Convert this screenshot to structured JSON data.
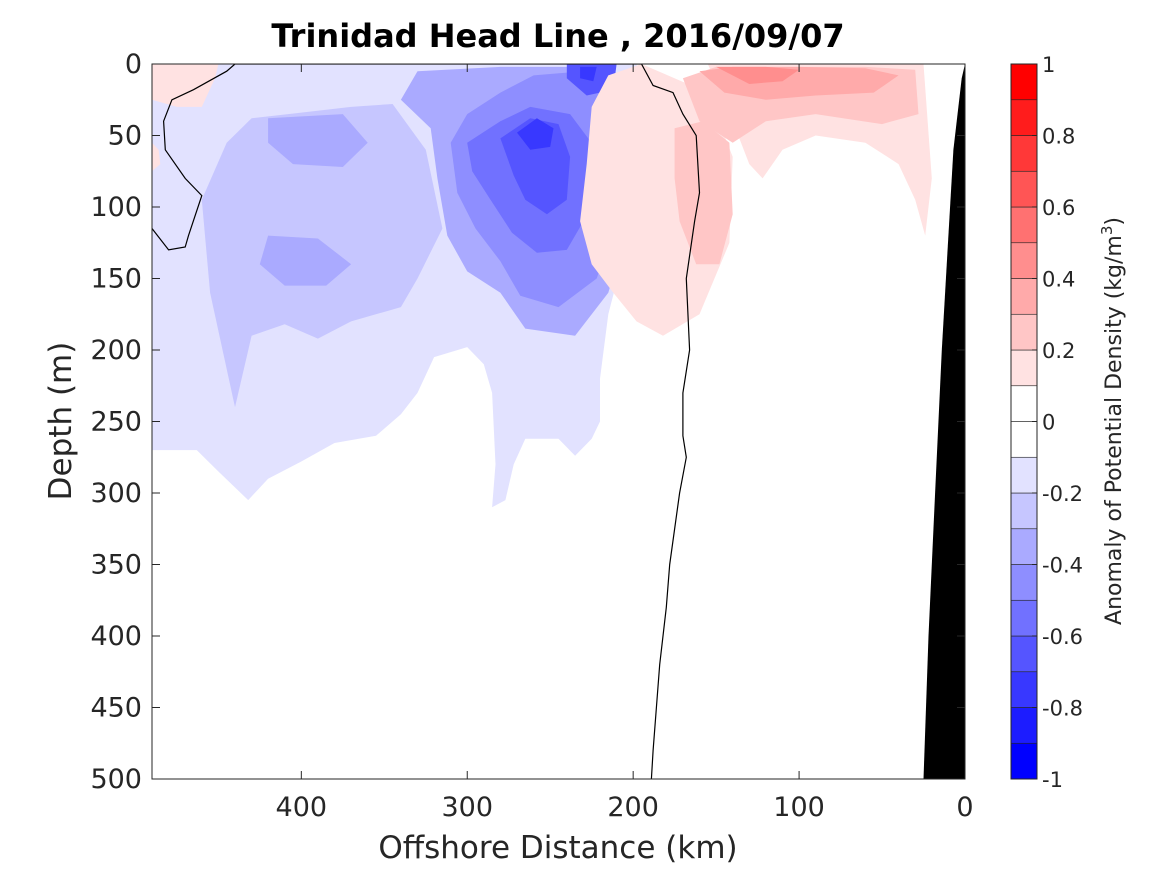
{
  "chart_data": {
    "type": "heatmap",
    "title": "Trinidad Head Line , 2016/09/07",
    "xlabel": "Offshore Distance (km)",
    "ylabel": "Depth (m)",
    "colorbar_label_prefix": "Anomaly of Potential Density (kg/m",
    "colorbar_label_sup": "3",
    "colorbar_label_suffix": ")",
    "x_reversed": true,
    "y_reversed": true,
    "xlim": [
      490,
      0
    ],
    "ylim": [
      0,
      500
    ],
    "xticks": [
      400,
      300,
      200,
      100,
      0
    ],
    "xtick_labels": [
      "400",
      "300",
      "200",
      "100",
      "0"
    ],
    "yticks": [
      0,
      50,
      100,
      150,
      200,
      250,
      300,
      350,
      400,
      450,
      500
    ],
    "ytick_labels": [
      "0",
      "50",
      "100",
      "150",
      "200",
      "250",
      "300",
      "350",
      "400",
      "450",
      "500"
    ],
    "colorbar": {
      "min": -1,
      "max": 1,
      "ticks": [
        -1,
        -0.8,
        -0.6,
        -0.4,
        -0.2,
        0,
        0.2,
        0.4,
        0.6,
        0.8,
        1
      ],
      "tick_labels": [
        "-1",
        "-0.8",
        "-0.6",
        "-0.4",
        "-0.2",
        "0",
        "0.2",
        "0.4",
        "0.6",
        "0.8",
        "1"
      ],
      "levels": [
        {
          "lo": -1.0,
          "hi": -0.9,
          "color": "#0000ff"
        },
        {
          "lo": -0.9,
          "hi": -0.8,
          "color": "#1c1cff"
        },
        {
          "lo": -0.8,
          "hi": -0.7,
          "color": "#3838ff"
        },
        {
          "lo": -0.7,
          "hi": -0.6,
          "color": "#5555ff"
        },
        {
          "lo": -0.6,
          "hi": -0.5,
          "color": "#7171ff"
        },
        {
          "lo": -0.5,
          "hi": -0.4,
          "color": "#8e8eff"
        },
        {
          "lo": -0.4,
          "hi": -0.3,
          "color": "#aaaaff"
        },
        {
          "lo": -0.3,
          "hi": -0.2,
          "color": "#c6c6ff"
        },
        {
          "lo": -0.2,
          "hi": -0.1,
          "color": "#e2e2ff"
        },
        {
          "lo": -0.1,
          "hi": 0.0,
          "color": "#ffffff"
        },
        {
          "lo": 0.0,
          "hi": 0.1,
          "color": "#ffffff"
        },
        {
          "lo": 0.1,
          "hi": 0.2,
          "color": "#ffe2e2"
        },
        {
          "lo": 0.2,
          "hi": 0.3,
          "color": "#ffc6c6"
        },
        {
          "lo": 0.3,
          "hi": 0.4,
          "color": "#ffaaaa"
        },
        {
          "lo": 0.4,
          "hi": 0.5,
          "color": "#ff8e8e"
        },
        {
          "lo": 0.5,
          "hi": 0.6,
          "color": "#ff7171"
        },
        {
          "lo": 0.6,
          "hi": 0.7,
          "color": "#ff5555"
        },
        {
          "lo": 0.7,
          "hi": 0.8,
          "color": "#ff3838"
        },
        {
          "lo": 0.8,
          "hi": 0.9,
          "color": "#ff1c1c"
        },
        {
          "lo": 0.9,
          "hi": 1.0,
          "color": "#ff0000"
        }
      ]
    },
    "anomaly_regions": [
      {
        "name": "offshore-weak-negative",
        "value": -0.15,
        "points": [
          [
            490,
            0
          ],
          [
            490,
            270
          ],
          [
            463,
            270
          ],
          [
            450,
            285
          ],
          [
            432,
            305
          ],
          [
            420,
            290
          ],
          [
            400,
            278
          ],
          [
            380,
            265
          ],
          [
            355,
            260
          ],
          [
            340,
            245
          ],
          [
            330,
            230
          ],
          [
            320,
            205
          ],
          [
            300,
            198
          ],
          [
            290,
            210
          ],
          [
            285,
            230
          ],
          [
            283,
            280
          ],
          [
            285,
            310
          ],
          [
            277,
            305
          ],
          [
            272,
            280
          ],
          [
            265,
            262
          ],
          [
            245,
            262
          ],
          [
            235,
            274
          ],
          [
            225,
            262
          ],
          [
            220,
            250
          ],
          [
            220,
            220
          ],
          [
            215,
            175
          ],
          [
            205,
            130
          ],
          [
            195,
            75
          ],
          [
            190,
            45
          ],
          [
            198,
            0
          ]
        ]
      },
      {
        "name": "offshore-moderate-negative-west",
        "value": -0.25,
        "points": [
          [
            440,
            240
          ],
          [
            455,
            160
          ],
          [
            460,
            95
          ],
          [
            445,
            55
          ],
          [
            430,
            38
          ],
          [
            400,
            34
          ],
          [
            370,
            30
          ],
          [
            345,
            28
          ],
          [
            325,
            60
          ],
          [
            315,
            115
          ],
          [
            330,
            150
          ],
          [
            340,
            170
          ],
          [
            370,
            180
          ],
          [
            390,
            192
          ],
          [
            410,
            182
          ],
          [
            430,
            190
          ],
          [
            440,
            240
          ]
        ]
      },
      {
        "name": "offshore-moderate-negative-core",
        "value": -0.35,
        "points": [
          [
            322,
            45
          ],
          [
            340,
            25
          ],
          [
            330,
            5
          ],
          [
            280,
            2
          ],
          [
            230,
            2
          ],
          [
            205,
            20
          ],
          [
            200,
            70
          ],
          [
            205,
            120
          ],
          [
            215,
            160
          ],
          [
            235,
            190
          ],
          [
            265,
            185
          ],
          [
            280,
            160
          ],
          [
            300,
            145
          ],
          [
            312,
            120
          ],
          [
            318,
            80
          ],
          [
            322,
            45
          ]
        ]
      },
      {
        "name": "offshore-negative-patch-a",
        "value": -0.35,
        "points": [
          [
            420,
            38
          ],
          [
            375,
            35
          ],
          [
            360,
            55
          ],
          [
            375,
            72
          ],
          [
            405,
            70
          ],
          [
            420,
            55
          ],
          [
            420,
            38
          ]
        ]
      },
      {
        "name": "offshore-negative-patch-b",
        "value": -0.35,
        "points": [
          [
            420,
            120
          ],
          [
            390,
            122
          ],
          [
            370,
            140
          ],
          [
            385,
            155
          ],
          [
            410,
            155
          ],
          [
            425,
            140
          ],
          [
            420,
            120
          ]
        ]
      },
      {
        "name": "negative-core-ring-1",
        "value": -0.45,
        "points": [
          [
            310,
            55
          ],
          [
            300,
            35
          ],
          [
            280,
            20
          ],
          [
            260,
            8
          ],
          [
            230,
            5
          ],
          [
            212,
            20
          ],
          [
            207,
            60
          ],
          [
            210,
            110
          ],
          [
            222,
            150
          ],
          [
            245,
            170
          ],
          [
            268,
            162
          ],
          [
            280,
            138
          ],
          [
            295,
            115
          ],
          [
            306,
            90
          ],
          [
            310,
            55
          ]
        ]
      },
      {
        "name": "negative-core-ring-2",
        "value": -0.55,
        "points": [
          [
            300,
            55
          ],
          [
            280,
            40
          ],
          [
            262,
            30
          ],
          [
            238,
            35
          ],
          [
            222,
            60
          ],
          [
            225,
            100
          ],
          [
            240,
            130
          ],
          [
            258,
            132
          ],
          [
            273,
            118
          ],
          [
            286,
            95
          ],
          [
            297,
            75
          ],
          [
            300,
            55
          ]
        ]
      },
      {
        "name": "negative-core-ring-3",
        "value": -0.65,
        "points": [
          [
            280,
            52
          ],
          [
            262,
            38
          ],
          [
            245,
            42
          ],
          [
            238,
            65
          ],
          [
            240,
            95
          ],
          [
            252,
            105
          ],
          [
            265,
            95
          ],
          [
            272,
            78
          ],
          [
            280,
            52
          ]
        ]
      },
      {
        "name": "negative-core-ring-4",
        "value": -0.75,
        "points": [
          [
            270,
            48
          ],
          [
            258,
            38
          ],
          [
            248,
            45
          ],
          [
            250,
            58
          ],
          [
            262,
            60
          ],
          [
            270,
            48
          ]
        ]
      },
      {
        "name": "negative-surface-tongue",
        "value": -0.65,
        "points": [
          [
            240,
            0
          ],
          [
            210,
            0
          ],
          [
            212,
            18
          ],
          [
            228,
            22
          ],
          [
            240,
            10
          ],
          [
            240,
            0
          ]
        ]
      },
      {
        "name": "negative-surface-tongue-core",
        "value": -0.8,
        "points": [
          [
            232,
            2
          ],
          [
            222,
            2
          ],
          [
            224,
            12
          ],
          [
            232,
            10
          ],
          [
            232,
            2
          ]
        ]
      },
      {
        "name": "zero-band-inshore",
        "value": 0.05,
        "points": [
          [
            195,
            0
          ],
          [
            190,
            30
          ],
          [
            185,
            60
          ],
          [
            180,
            100
          ],
          [
            178,
            150
          ],
          [
            176,
            250
          ],
          [
            178,
            330
          ],
          [
            183,
            420
          ],
          [
            186,
            500
          ],
          [
            25,
            500
          ],
          [
            20,
            100
          ],
          [
            20,
            0
          ]
        ]
      },
      {
        "name": "inshore-weak-positive",
        "value": 0.15,
        "points": [
          [
            195,
            0
          ],
          [
            155,
            20
          ],
          [
            140,
            65
          ],
          [
            142,
            125
          ],
          [
            160,
            175
          ],
          [
            182,
            190
          ],
          [
            198,
            180
          ],
          [
            212,
            160
          ],
          [
            225,
            140
          ],
          [
            232,
            110
          ],
          [
            228,
            70
          ],
          [
            225,
            30
          ],
          [
            215,
            8
          ],
          [
            195,
            0
          ]
        ]
      },
      {
        "name": "inshore-weak-positive-coast",
        "value": 0.15,
        "points": [
          [
            155,
            0
          ],
          [
            120,
            0
          ],
          [
            60,
            0
          ],
          [
            25,
            0
          ],
          [
            20,
            80
          ],
          [
            24,
            120
          ],
          [
            30,
            95
          ],
          [
            40,
            70
          ],
          [
            60,
            55
          ],
          [
            90,
            50
          ],
          [
            110,
            60
          ],
          [
            122,
            80
          ],
          [
            130,
            70
          ],
          [
            140,
            40
          ],
          [
            155,
            0
          ]
        ]
      },
      {
        "name": "inshore-moderate-positive",
        "value": 0.25,
        "points": [
          [
            175,
            45
          ],
          [
            158,
            40
          ],
          [
            142,
            55
          ],
          [
            140,
            105
          ],
          [
            148,
            140
          ],
          [
            162,
            140
          ],
          [
            172,
            110
          ],
          [
            175,
            80
          ],
          [
            175,
            45
          ]
        ]
      },
      {
        "name": "inshore-moderate-positive-coast",
        "value": 0.25,
        "points": [
          [
            170,
            10
          ],
          [
            150,
            2
          ],
          [
            110,
            2
          ],
          [
            60,
            2
          ],
          [
            30,
            4
          ],
          [
            28,
            35
          ],
          [
            50,
            42
          ],
          [
            90,
            35
          ],
          [
            120,
            40
          ],
          [
            140,
            55
          ],
          [
            160,
            40
          ],
          [
            170,
            10
          ]
        ]
      },
      {
        "name": "inshore-strong-positive",
        "value": 0.35,
        "points": [
          [
            160,
            5
          ],
          [
            140,
            2
          ],
          [
            100,
            2
          ],
          [
            60,
            3
          ],
          [
            40,
            8
          ],
          [
            55,
            20
          ],
          [
            90,
            22
          ],
          [
            120,
            25
          ],
          [
            145,
            20
          ],
          [
            160,
            5
          ]
        ]
      },
      {
        "name": "inshore-strongest-positive",
        "value": 0.45,
        "points": [
          [
            150,
            2
          ],
          [
            120,
            2
          ],
          [
            100,
            4
          ],
          [
            110,
            12
          ],
          [
            130,
            14
          ],
          [
            150,
            2
          ]
        ]
      },
      {
        "name": "offshore-weak-positive-corner",
        "value": 0.15,
        "points": [
          [
            490,
            0
          ],
          [
            490,
            25
          ],
          [
            475,
            30
          ],
          [
            460,
            30
          ],
          [
            452,
            10
          ],
          [
            450,
            0
          ]
        ]
      },
      {
        "name": "offshore-weak-positive-edge",
        "value": 0.15,
        "points": [
          [
            490,
            55
          ],
          [
            490,
            75
          ],
          [
            485,
            70
          ],
          [
            486,
            60
          ]
        ]
      }
    ],
    "zero_contour": [
      [
        490,
        115
      ],
      [
        480,
        130
      ],
      [
        470,
        128
      ],
      [
        468,
        120
      ],
      [
        460,
        92
      ],
      [
        470,
        80
      ],
      [
        482,
        60
      ],
      [
        483,
        40
      ],
      [
        478,
        25
      ],
      [
        465,
        18
      ],
      [
        445,
        5
      ],
      [
        440,
        0
      ],
      [
        195,
        0
      ],
      [
        188,
        15
      ],
      [
        176,
        20
      ],
      [
        170,
        35
      ],
      [
        162,
        50
      ],
      [
        160,
        90
      ],
      [
        163,
        110
      ],
      [
        168,
        150
      ],
      [
        166,
        200
      ],
      [
        170,
        230
      ],
      [
        170,
        260
      ],
      [
        168,
        275
      ],
      [
        172,
        300
      ],
      [
        178,
        350
      ],
      [
        180,
        380
      ],
      [
        184,
        420
      ],
      [
        186,
        450
      ],
      [
        188,
        480
      ],
      [
        189,
        500
      ]
    ],
    "bathymetry": [
      [
        25,
        500
      ],
      [
        22,
        400
      ],
      [
        18,
        300
      ],
      [
        14,
        200
      ],
      [
        10,
        120
      ],
      [
        7,
        60
      ],
      [
        2,
        10
      ],
      [
        0,
        0
      ],
      [
        0,
        500
      ]
    ]
  }
}
